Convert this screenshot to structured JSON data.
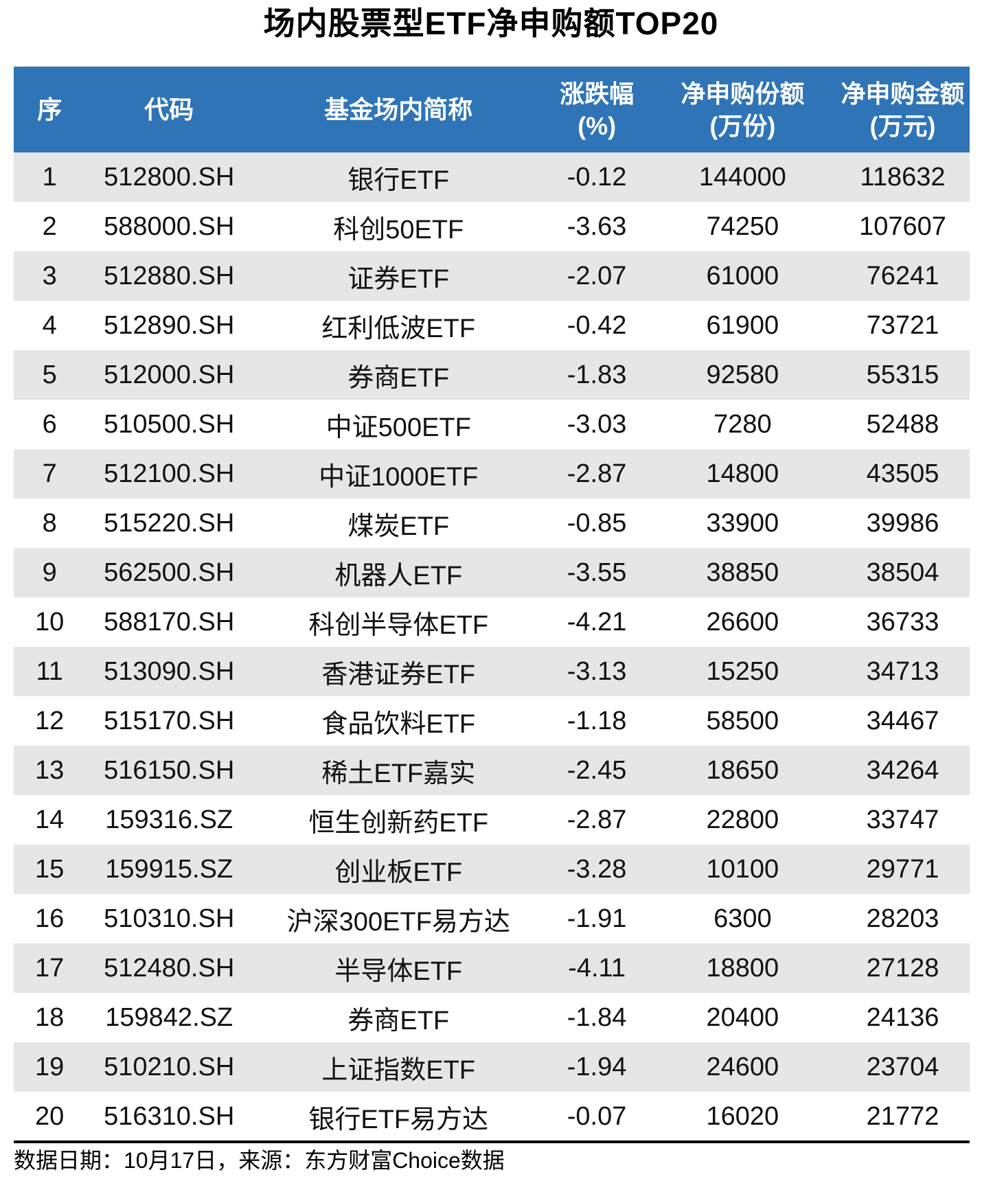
{
  "title": "场内股票型ETF净申购额TOP20",
  "colors": {
    "header_bg": "#2F74B7",
    "header_text": "#FFFFFF",
    "row_alt_bg": "#E6E6E7",
    "body_text": "#111111",
    "divider": "#000000"
  },
  "header": [
    {
      "l1": "序",
      "l2": ""
    },
    {
      "l1": "代码",
      "l2": ""
    },
    {
      "l1": "基金场内简称",
      "l2": ""
    },
    {
      "l1": "涨跌幅",
      "l2": "(%)"
    },
    {
      "l1": "净申购份额",
      "l2": "(万份)"
    },
    {
      "l1": "净申购金额",
      "l2": "(万元)"
    }
  ],
  "chart_data": {
    "type": "table",
    "title": "场内股票型ETF净申购额TOP20",
    "columns": [
      "序",
      "代码",
      "基金场内简称",
      "涨跌幅(%)",
      "净申购份额(万份)",
      "净申购金额(万元)"
    ],
    "rows": [
      [
        1,
        "512800.SH",
        "银行ETF",
        -0.12,
        144000,
        118632
      ],
      [
        2,
        "588000.SH",
        "科创50ETF",
        -3.63,
        74250,
        107607
      ],
      [
        3,
        "512880.SH",
        "证券ETF",
        -2.07,
        61000,
        76241
      ],
      [
        4,
        "512890.SH",
        "红利低波ETF",
        -0.42,
        61900,
        73721
      ],
      [
        5,
        "512000.SH",
        "券商ETF",
        -1.83,
        92580,
        55315
      ],
      [
        6,
        "510500.SH",
        "中证500ETF",
        -3.03,
        7280,
        52488
      ],
      [
        7,
        "512100.SH",
        "中证1000ETF",
        -2.87,
        14800,
        43505
      ],
      [
        8,
        "515220.SH",
        "煤炭ETF",
        -0.85,
        33900,
        39986
      ],
      [
        9,
        "562500.SH",
        "机器人ETF",
        -3.55,
        38850,
        38504
      ],
      [
        10,
        "588170.SH",
        "科创半导体ETF",
        -4.21,
        26600,
        36733
      ],
      [
        11,
        "513090.SH",
        "香港证券ETF",
        -3.13,
        15250,
        34713
      ],
      [
        12,
        "515170.SH",
        "食品饮料ETF",
        -1.18,
        58500,
        34467
      ],
      [
        13,
        "516150.SH",
        "稀土ETF嘉实",
        -2.45,
        18650,
        34264
      ],
      [
        14,
        "159316.SZ",
        "恒生创新药ETF",
        -2.87,
        22800,
        33747
      ],
      [
        15,
        "159915.SZ",
        "创业板ETF",
        -3.28,
        10100,
        29771
      ],
      [
        16,
        "510310.SH",
        "沪深300ETF易方达",
        -1.91,
        6300,
        28203
      ],
      [
        17,
        "512480.SH",
        "半导体ETF",
        -4.11,
        18800,
        27128
      ],
      [
        18,
        "159842.SZ",
        "券商ETF",
        -1.84,
        20400,
        24136
      ],
      [
        19,
        "510210.SH",
        "上证指数ETF",
        -1.94,
        24600,
        23704
      ],
      [
        20,
        "516310.SH",
        "银行ETF易方达",
        -0.07,
        16020,
        21772
      ]
    ]
  },
  "footer": {
    "note": "数据日期：10月17日，来源：东方财富Choice数据"
  }
}
